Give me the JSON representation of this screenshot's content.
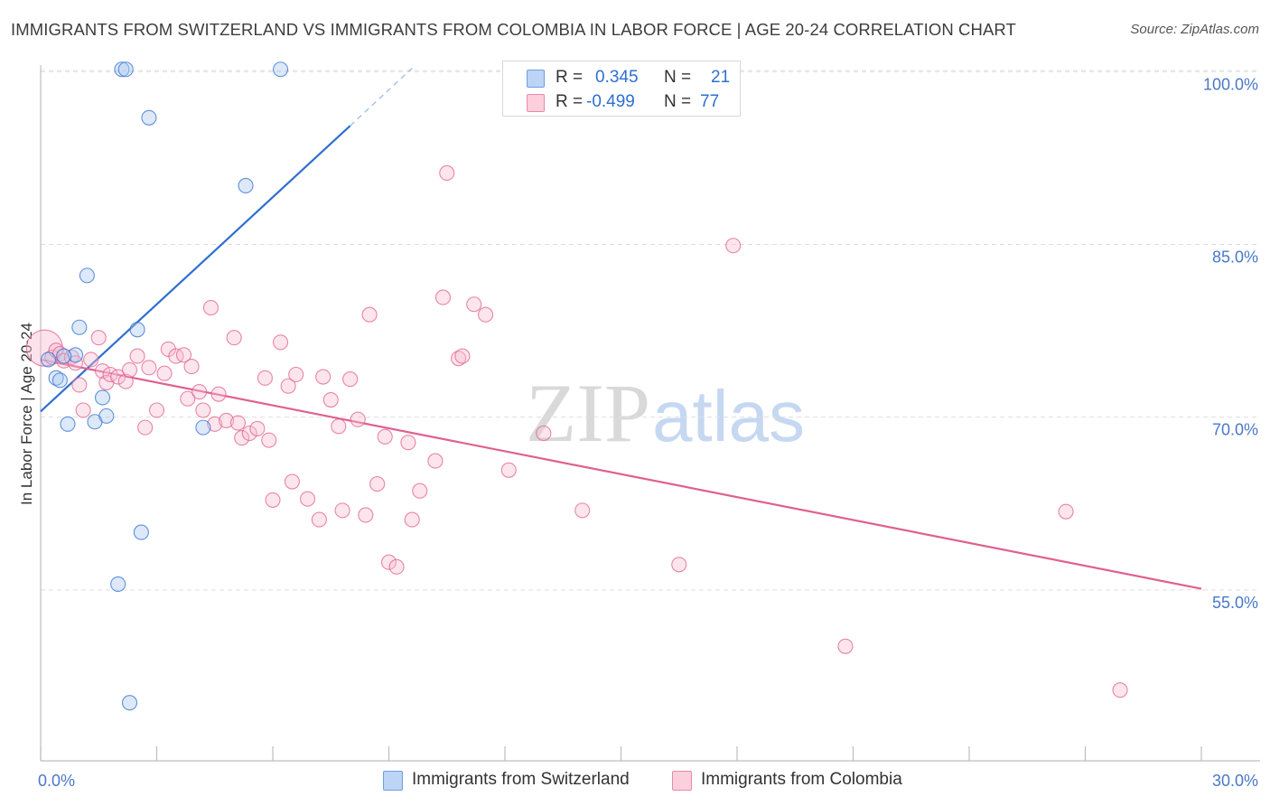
{
  "header": {
    "title": "IMMIGRANTS FROM SWITZERLAND VS IMMIGRANTS FROM COLOMBIA IN LABOR FORCE | AGE 20-24 CORRELATION CHART",
    "source_label": "Source:",
    "source_value": "ZipAtlas.com"
  },
  "watermark": {
    "zip": "ZIP",
    "atlas": "atlas"
  },
  "legend": {
    "r_label": "R =",
    "n_label": "N =",
    "series": [
      {
        "r": "0.345",
        "n": "21"
      },
      {
        "r": "-0.499",
        "n": "77"
      }
    ]
  },
  "chart_data": {
    "type": "scatter",
    "title": "IMMIGRANTS FROM SWITZERLAND VS IMMIGRANTS FROM COLOMBIA IN LABOR FORCE | AGE 20-24 CORRELATION CHART",
    "ylabel": "In Labor Force | Age 20-24",
    "xlabel": "",
    "xlim": [
      0,
      30
    ],
    "ylim": [
      40,
      102
    ],
    "x_tick_labels": [
      "0.0%",
      "30.0%"
    ],
    "y_ticks": [
      55,
      70,
      85,
      100
    ],
    "y_tick_labels": [
      "55.0%",
      "70.0%",
      "85.0%",
      "100.0%"
    ],
    "grid": true,
    "legend_placement": "top-center",
    "series": [
      {
        "name": "Immigrants from Switzerland",
        "color": "#2f6fd0",
        "fill": "#aac8f0",
        "r": 0.345,
        "n": 21,
        "points": [
          [
            0.2,
            75.0
          ],
          [
            0.4,
            73.4
          ],
          [
            0.5,
            73.2
          ],
          [
            0.7,
            69.4
          ],
          [
            0.9,
            75.4
          ],
          [
            1.0,
            77.8
          ],
          [
            1.2,
            82.3
          ],
          [
            1.4,
            69.6
          ],
          [
            1.6,
            71.7
          ],
          [
            1.7,
            70.1
          ],
          [
            2.0,
            55.5
          ],
          [
            2.1,
            100.2
          ],
          [
            2.2,
            100.2
          ],
          [
            2.3,
            45.2
          ],
          [
            2.5,
            77.6
          ],
          [
            2.6,
            60.0
          ],
          [
            2.8,
            96.0
          ],
          [
            4.2,
            69.1
          ],
          [
            5.3,
            90.1
          ],
          [
            6.2,
            100.2
          ],
          [
            0.6,
            75.3
          ]
        ],
        "trend": {
          "x": [
            0.0,
            8.0
          ],
          "y": [
            70.5,
            95.3
          ],
          "dash_x": [
            8.0,
            9.6
          ],
          "dash_y": [
            95.3,
            100.3
          ]
        }
      },
      {
        "name": "Immigrants from Colombia",
        "color": "#e0608e",
        "fill": "#f8bfd2",
        "r": -0.499,
        "n": 77,
        "points": [
          [
            0.1,
            76.0
          ],
          [
            0.3,
            75.2
          ],
          [
            0.4,
            75.8
          ],
          [
            0.5,
            75.5
          ],
          [
            0.6,
            74.9
          ],
          [
            0.8,
            75.2
          ],
          [
            0.9,
            74.7
          ],
          [
            1.0,
            72.8
          ],
          [
            1.1,
            70.6
          ],
          [
            1.3,
            75.0
          ],
          [
            1.5,
            76.9
          ],
          [
            1.6,
            74.0
          ],
          [
            1.7,
            73.0
          ],
          [
            1.8,
            73.7
          ],
          [
            2.0,
            73.5
          ],
          [
            2.2,
            73.1
          ],
          [
            2.3,
            74.1
          ],
          [
            2.5,
            75.3
          ],
          [
            2.7,
            69.1
          ],
          [
            2.8,
            74.3
          ],
          [
            3.0,
            70.6
          ],
          [
            3.2,
            73.8
          ],
          [
            3.3,
            75.9
          ],
          [
            3.5,
            75.3
          ],
          [
            3.7,
            75.4
          ],
          [
            3.8,
            71.6
          ],
          [
            3.9,
            74.4
          ],
          [
            4.1,
            72.2
          ],
          [
            4.2,
            70.6
          ],
          [
            4.4,
            79.5
          ],
          [
            4.5,
            69.4
          ],
          [
            4.6,
            72.0
          ],
          [
            4.8,
            69.7
          ],
          [
            5.0,
            76.9
          ],
          [
            5.1,
            69.5
          ],
          [
            5.2,
            68.2
          ],
          [
            5.4,
            68.6
          ],
          [
            5.6,
            69.0
          ],
          [
            5.8,
            73.4
          ],
          [
            5.9,
            68.0
          ],
          [
            6.0,
            62.8
          ],
          [
            6.2,
            76.5
          ],
          [
            6.4,
            72.7
          ],
          [
            6.5,
            64.4
          ],
          [
            6.6,
            73.7
          ],
          [
            6.9,
            62.9
          ],
          [
            7.2,
            61.1
          ],
          [
            7.3,
            73.5
          ],
          [
            7.5,
            71.5
          ],
          [
            7.7,
            69.2
          ],
          [
            7.8,
            61.9
          ],
          [
            8.0,
            73.3
          ],
          [
            8.2,
            69.8
          ],
          [
            8.4,
            61.5
          ],
          [
            8.5,
            78.9
          ],
          [
            8.7,
            64.2
          ],
          [
            8.9,
            68.3
          ],
          [
            9.0,
            57.4
          ],
          [
            9.2,
            57.0
          ],
          [
            9.5,
            67.8
          ],
          [
            9.6,
            61.1
          ],
          [
            9.8,
            63.6
          ],
          [
            10.2,
            66.2
          ],
          [
            10.4,
            80.4
          ],
          [
            10.5,
            91.2
          ],
          [
            10.8,
            75.1
          ],
          [
            10.9,
            75.3
          ],
          [
            11.2,
            79.8
          ],
          [
            11.5,
            78.9
          ],
          [
            12.1,
            65.4
          ],
          [
            13.0,
            68.6
          ],
          [
            14.0,
            61.9
          ],
          [
            16.5,
            57.2
          ],
          [
            17.9,
            84.9
          ],
          [
            20.8,
            50.1
          ],
          [
            26.5,
            61.8
          ],
          [
            27.9,
            46.3
          ]
        ],
        "trend": {
          "x": [
            0.0,
            30.0
          ],
          "y": [
            75.0,
            55.1
          ]
        }
      }
    ]
  },
  "bottom_legend": [
    {
      "label": "Immigrants from Switzerland"
    },
    {
      "label": "Immigrants from Colombia"
    }
  ]
}
